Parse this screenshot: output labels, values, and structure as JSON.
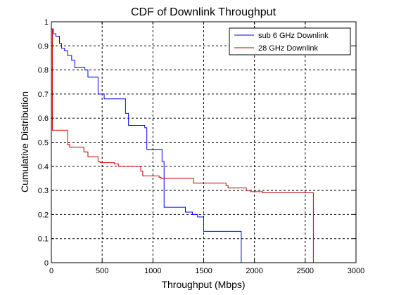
{
  "chart_data": {
    "type": "line",
    "title": "CDF of Downlink Throughput",
    "xlabel": "Throughput (Mbps)",
    "ylabel": "Cumulative Distribution",
    "xlim": [
      0,
      3000
    ],
    "ylim": [
      0,
      1
    ],
    "x_ticks": [
      0,
      500,
      1000,
      1500,
      2000,
      2500,
      3000
    ],
    "y_ticks": [
      0,
      0.1,
      0.2,
      0.3,
      0.4,
      0.5,
      0.6,
      0.7,
      0.8,
      0.9,
      1
    ],
    "x_tick_labels": [
      "0",
      "500",
      "1000",
      "1500",
      "2000",
      "2500",
      "3000"
    ],
    "y_tick_labels": [
      "0",
      "0.1",
      "0.2",
      "0.3",
      "0.4",
      "0.5",
      "0.6",
      "0.7",
      "0.8",
      "0.9",
      "1"
    ],
    "grid": true,
    "legend_position": "top-right",
    "series": [
      {
        "name": "sub 6 GHz Downlink",
        "color": "#0000ff",
        "step": true,
        "x": [
          0,
          20,
          45,
          80,
          100,
          130,
          160,
          200,
          230,
          330,
          360,
          460,
          520,
          730,
          760,
          920,
          940,
          1090,
          1110,
          1320,
          1390,
          1440,
          1500,
          1870
        ],
        "y": [
          0.97,
          0.95,
          0.94,
          0.91,
          0.89,
          0.88,
          0.86,
          0.84,
          0.81,
          0.8,
          0.77,
          0.7,
          0.68,
          0.62,
          0.57,
          0.56,
          0.47,
          0.42,
          0.23,
          0.21,
          0.2,
          0.19,
          0.13,
          0.12
        ]
      },
      {
        "name": "28 GHz Downlink",
        "color": "#cc0000",
        "step": true,
        "x": [
          0,
          10,
          160,
          180,
          320,
          360,
          460,
          480,
          620,
          660,
          880,
          900,
          1060,
          1080,
          1400,
          1720,
          1740,
          1920,
          1960,
          2080,
          2580
        ],
        "y": [
          0.97,
          0.55,
          0.49,
          0.48,
          0.46,
          0.44,
          0.42,
          0.415,
          0.41,
          0.4,
          0.38,
          0.36,
          0.355,
          0.35,
          0.33,
          0.32,
          0.31,
          0.3,
          0.295,
          0.29,
          0.205
        ]
      }
    ]
  }
}
